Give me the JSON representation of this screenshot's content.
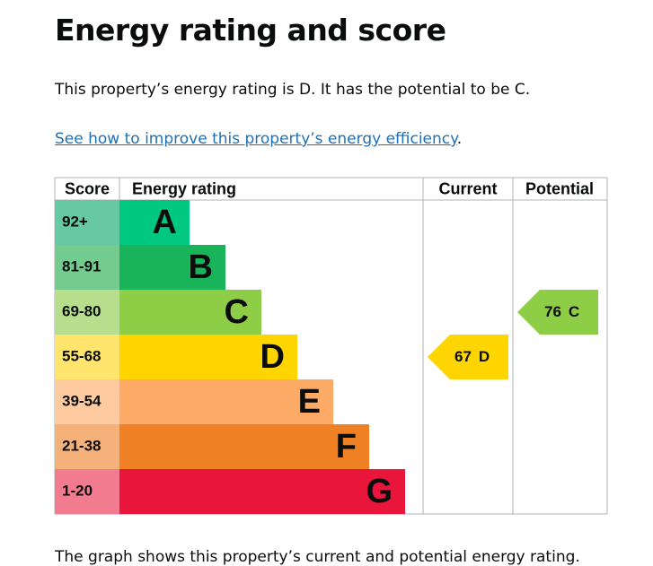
{
  "title": "Energy rating and score",
  "summary": "This property’s energy rating is D. It has the potential to be C.",
  "link": {
    "text": "See how to improve this property’s energy efficiency",
    "suffix": "."
  },
  "chart": {
    "headers": [
      "Score",
      "Energy rating",
      "Current",
      "Potential"
    ],
    "bands": [
      {
        "score": "92+",
        "letter": "A",
        "color": "#00c781",
        "score_color": "#66c9a3"
      },
      {
        "score": "81-91",
        "letter": "B",
        "color": "#19b459",
        "score_color": "#73cc8e"
      },
      {
        "score": "69-80",
        "letter": "C",
        "color": "#8dce46",
        "score_color": "#b6de8c"
      },
      {
        "score": "55-68",
        "letter": "D",
        "color": "#ffd500",
        "score_color": "#ffe46e"
      },
      {
        "score": "39-54",
        "letter": "E",
        "color": "#fcaa65",
        "score_color": "#fdcb9f"
      },
      {
        "score": "21-38",
        "letter": "F",
        "color": "#ef8023",
        "score_color": "#f4b27a"
      },
      {
        "score": "1-20",
        "letter": "G",
        "color": "#e9153b",
        "score_color": "#f27b8f"
      }
    ],
    "current": {
      "value": 67,
      "letter": "D"
    },
    "potential": {
      "value": 76,
      "letter": "C"
    }
  },
  "footer": "The graph shows this property’s current and potential energy rating."
}
